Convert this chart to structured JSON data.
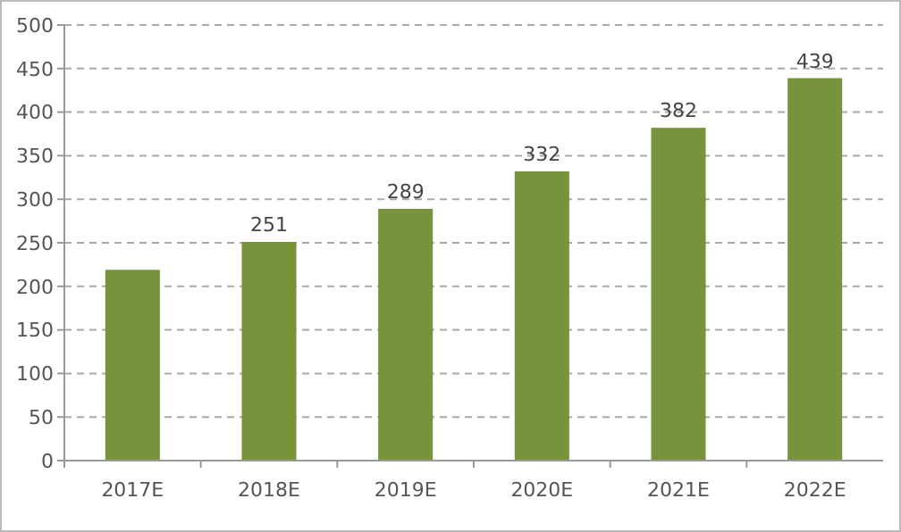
{
  "chart_data": {
    "type": "bar",
    "categories": [
      "2017E",
      "2018E",
      "2019E",
      "2020E",
      "2021E",
      "2022E"
    ],
    "values": [
      219,
      251,
      289,
      332,
      382,
      439
    ],
    "value_labels": [
      null,
      "251",
      "289",
      "332",
      "382",
      "439"
    ],
    "color": "#77933c",
    "ylim": [
      0,
      500
    ],
    "yticks": [
      0,
      50,
      100,
      150,
      200,
      250,
      300,
      350,
      400,
      450,
      500
    ],
    "grid": "y"
  }
}
